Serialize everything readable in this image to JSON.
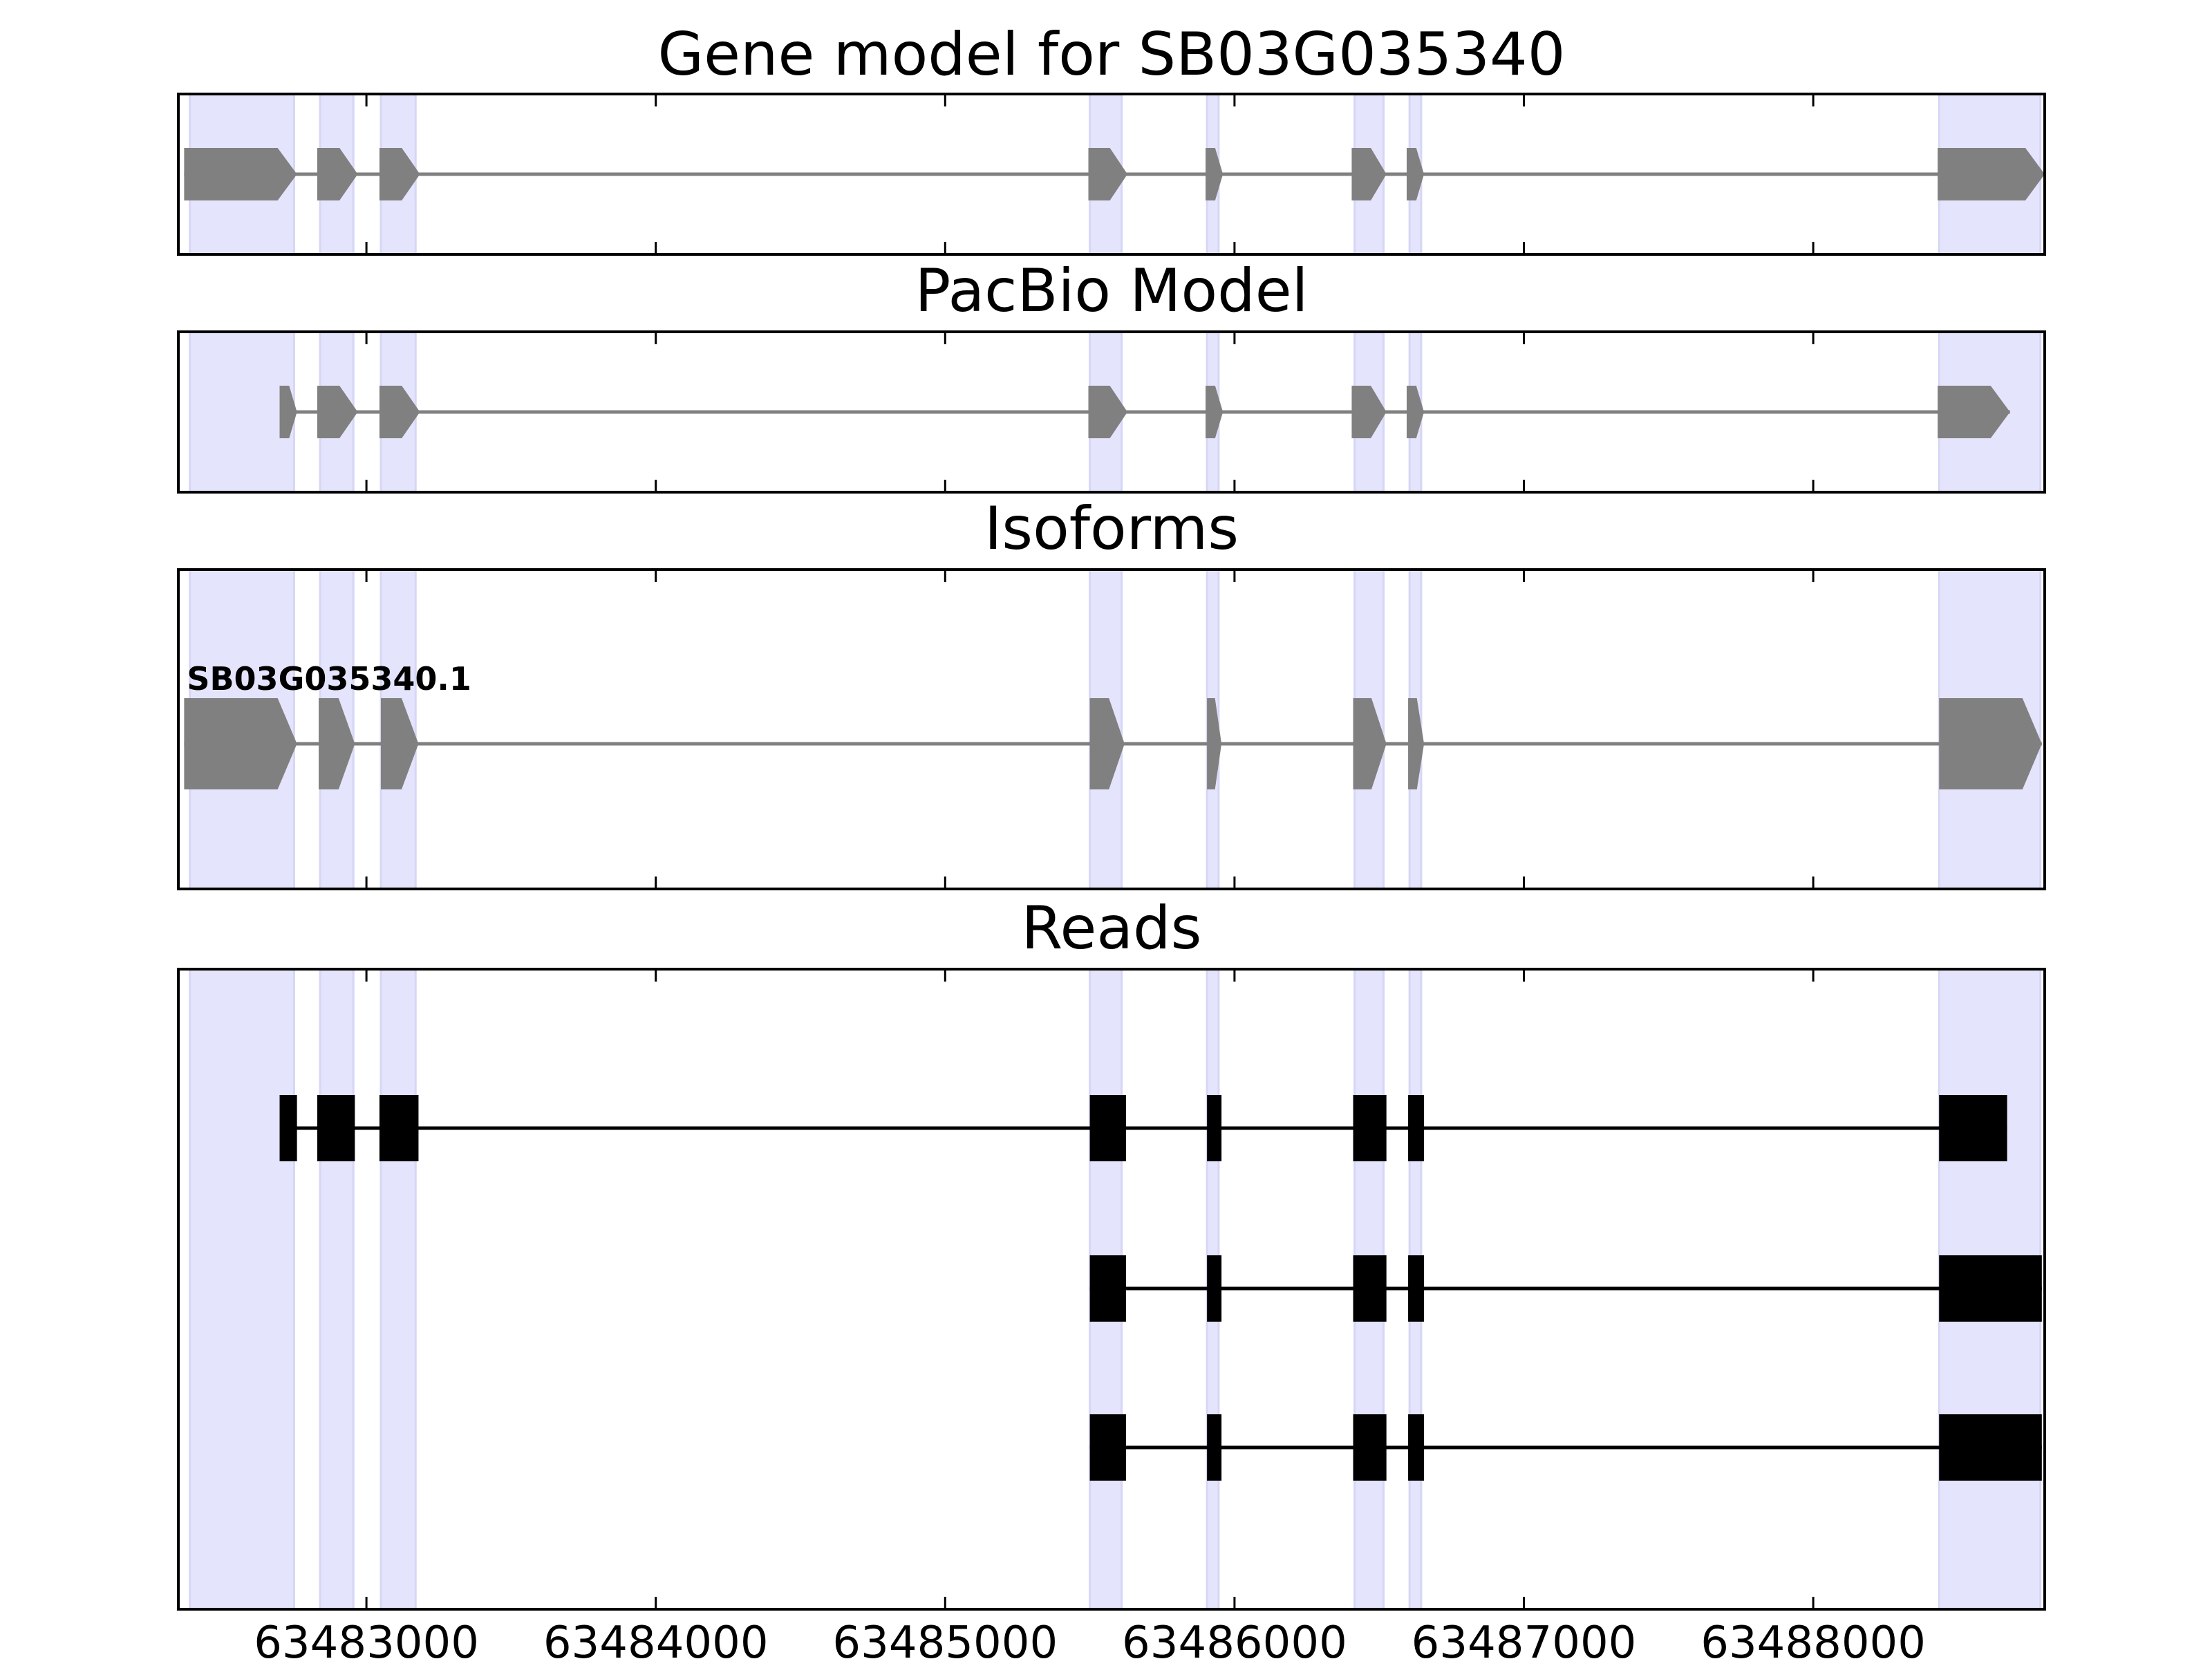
{
  "chart_data": {
    "type": "gene-structure",
    "x_axis": {
      "range": [
        63482350,
        63488800
      ],
      "ticks": [
        63483000,
        63484000,
        63485000,
        63486000,
        63487000,
        63488000
      ],
      "tick_labels": [
        "63483000",
        "63484000",
        "63485000",
        "63486000",
        "63487000",
        "63488000"
      ]
    },
    "colors": {
      "highlight": "#e4e4fc",
      "gene_feature": "#808080",
      "read_feature": "#000000",
      "axes": "#000000"
    },
    "highlight_regions": [
      [
        63482390,
        63482750
      ],
      [
        63482840,
        63482955
      ],
      [
        63483050,
        63483170
      ],
      [
        63485500,
        63485610
      ],
      [
        63485905,
        63485945
      ],
      [
        63486415,
        63486515
      ],
      [
        63486605,
        63486645
      ],
      [
        63488435,
        63488785
      ]
    ],
    "panels": [
      {
        "title": "Gene model for SB03G035340",
        "tracks": [
          {
            "label": "",
            "exons": [
              [
                63482370,
                63482760
              ],
              [
                63482830,
                63482970
              ],
              [
                63483045,
                63483185
              ],
              [
                63485495,
                63485630
              ],
              [
                63485900,
                63485960
              ],
              [
                63486405,
                63486525
              ],
              [
                63486595,
                63486655
              ],
              [
                63488430,
                63488800
              ]
            ]
          }
        ]
      },
      {
        "title": "PacBio Model",
        "tracks": [
          {
            "label": "",
            "exons": [
              [
                63482700,
                63482760
              ],
              [
                63482830,
                63482970
              ],
              [
                63483045,
                63483185
              ],
              [
                63485495,
                63485630
              ],
              [
                63485900,
                63485960
              ],
              [
                63486405,
                63486525
              ],
              [
                63486595,
                63486655
              ],
              [
                63488430,
                63488680
              ]
            ]
          }
        ]
      },
      {
        "title": "Isoforms",
        "tracks": [
          {
            "label": "SB03G035340.1",
            "exons": [
              [
                63482370,
                63482760
              ],
              [
                63482835,
                63482960
              ],
              [
                63483050,
                63483180
              ],
              [
                63485500,
                63485620
              ],
              [
                63485905,
                63485955
              ],
              [
                63486410,
                63486525
              ],
              [
                63486600,
                63486655
              ],
              [
                63488435,
                63488790
              ]
            ]
          }
        ]
      },
      {
        "title": "Reads",
        "tracks": [
          {
            "label": "",
            "exons": [
              [
                63482700,
                63482760
              ],
              [
                63482830,
                63482960
              ],
              [
                63483045,
                63483180
              ],
              [
                63485500,
                63485625
              ],
              [
                63485905,
                63485955
              ],
              [
                63486410,
                63486525
              ],
              [
                63486600,
                63486655
              ],
              [
                63488435,
                63488670
              ]
            ]
          },
          {
            "label": "",
            "exons": [
              [
                63485500,
                63485625
              ],
              [
                63485905,
                63485955
              ],
              [
                63486410,
                63486525
              ],
              [
                63486600,
                63486655
              ],
              [
                63488435,
                63488790
              ]
            ]
          },
          {
            "label": "",
            "exons": [
              [
                63485500,
                63485625
              ],
              [
                63485905,
                63485955
              ],
              [
                63486410,
                63486525
              ],
              [
                63486600,
                63486655
              ],
              [
                63488435,
                63488790
              ]
            ]
          }
        ]
      }
    ]
  }
}
